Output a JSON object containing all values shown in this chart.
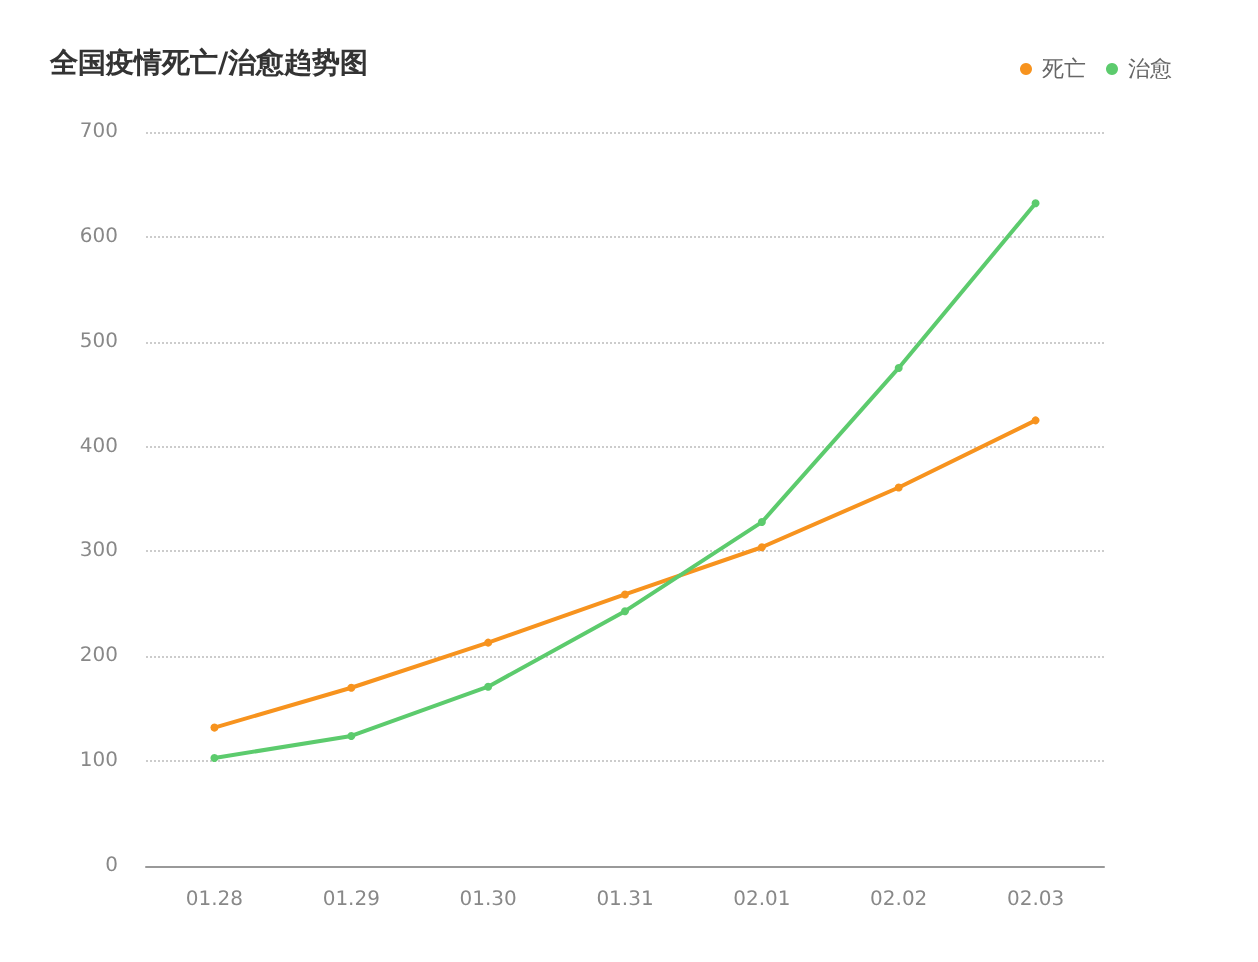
{
  "chart_data": {
    "type": "line",
    "title": "全国疫情死亡/治愈趋势图",
    "categories": [
      "01.28",
      "01.29",
      "01.30",
      "01.31",
      "02.01",
      "02.02",
      "02.03"
    ],
    "series": [
      {
        "name": "死亡",
        "color": "#f7931e",
        "values": [
          132,
          170,
          213,
          259,
          304,
          361,
          425
        ]
      },
      {
        "name": "治愈",
        "color": "#5ccb6d",
        "values": [
          103,
          124,
          171,
          243,
          328,
          475,
          632
        ]
      }
    ],
    "ylim": [
      0,
      700
    ],
    "yticks": [
      0,
      100,
      200,
      300,
      400,
      500,
      600,
      700
    ],
    "grid": "y",
    "legend": "top right",
    "marker": "circle",
    "line_style": "solid"
  }
}
